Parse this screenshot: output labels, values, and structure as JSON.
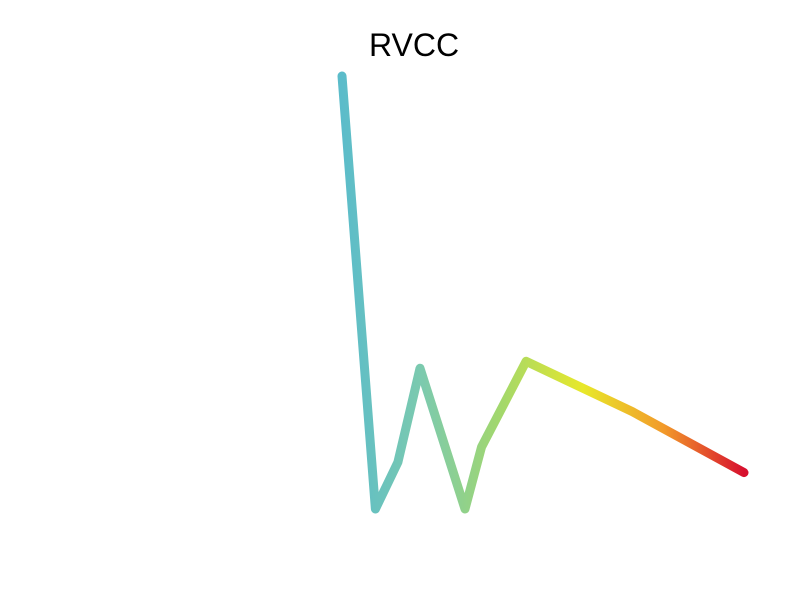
{
  "chart_data": {
    "type": "line",
    "title": "RVCC",
    "xlabel": "",
    "ylabel": "",
    "grid": false,
    "legend": "none",
    "xlim": [
      0,
      1
    ],
    "ylim": [
      0,
      1
    ],
    "x": [
      0.0,
      0.083,
      0.139,
      0.194,
      0.306,
      0.347,
      0.458,
      0.722,
      1.0
    ],
    "y": [
      1.0,
      0.0,
      0.108,
      0.325,
      0.0,
      0.143,
      0.341,
      0.225,
      0.084
    ],
    "gradient_colors": [
      "#5bbcca",
      "#7ccaae",
      "#a4d86a",
      "#e8e82a",
      "#f29a2a",
      "#d7102e"
    ]
  }
}
